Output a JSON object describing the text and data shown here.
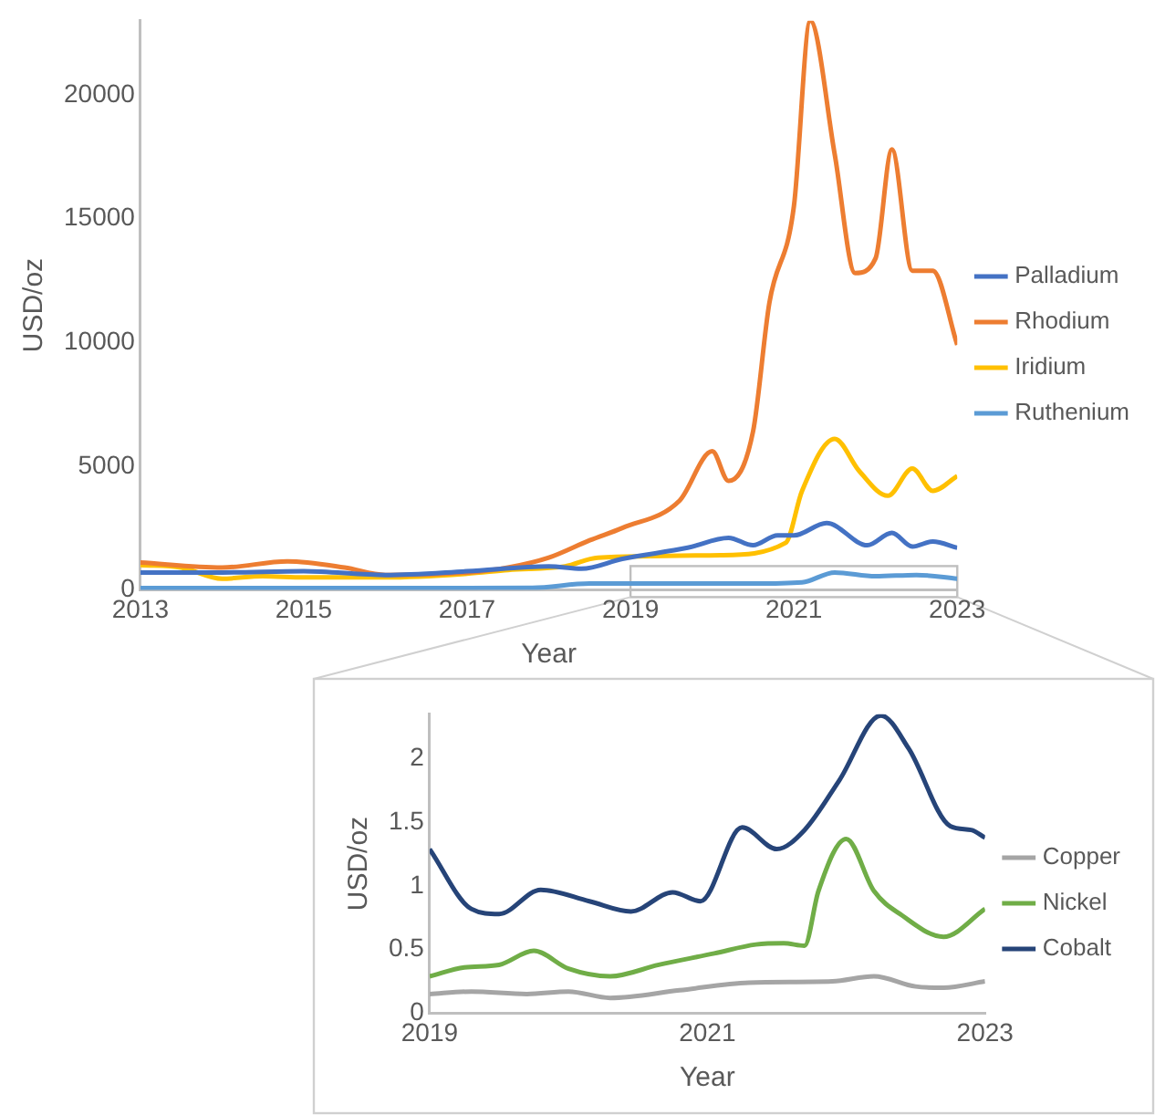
{
  "chart_data": [
    {
      "type": "line",
      "xlabel": "Year",
      "ylabel": "USD/oz",
      "xlim": [
        2013,
        2023
      ],
      "xticks": [
        2013,
        2015,
        2017,
        2019,
        2021,
        2023
      ],
      "ylim": [
        0,
        23000
      ],
      "yticks": [
        0,
        5000,
        10000,
        15000,
        20000
      ],
      "legend": "right",
      "series": [
        {
          "name": "Palladium",
          "color": "#4472c4",
          "x": [
            2013,
            2014,
            2015,
            2016,
            2017,
            2018,
            2018.4,
            2018.9,
            2019.7,
            2020.2,
            2020.5,
            2020.8,
            2021,
            2021.4,
            2021.9,
            2022.2,
            2022.45,
            2022.7,
            2023
          ],
          "values": [
            700,
            700,
            750,
            600,
            750,
            950,
            850,
            1250,
            1700,
            2100,
            1800,
            2200,
            2200,
            2700,
            1800,
            2300,
            1750,
            1950,
            1700
          ]
        },
        {
          "name": "Rhodium",
          "color": "#ed7d31",
          "x": [
            2013,
            2014,
            2014.8,
            2015.5,
            2016,
            2017,
            2017.5,
            2018,
            2018.5,
            2018.9,
            2019.6,
            2020,
            2020.2,
            2020.5,
            2020.7,
            2021,
            2021.2,
            2021.5,
            2021.75,
            2022,
            2022.2,
            2022.45,
            2022.7,
            2023
          ],
          "values": [
            1100,
            900,
            1150,
            900,
            600,
            700,
            900,
            1300,
            2000,
            2500,
            3600,
            5600,
            4400,
            6400,
            11600,
            15500,
            23000,
            17600,
            12800,
            13400,
            17800,
            12900,
            12900,
            9900
          ]
        },
        {
          "name": "Iridium",
          "color": "#ffc000",
          "x": [
            2013,
            2013.5,
            2014,
            2014.5,
            2015,
            2016,
            2017,
            2017.5,
            2018.2,
            2018.6,
            2020.1,
            2020.9,
            2021.1,
            2021.5,
            2021.8,
            2022.15,
            2022.45,
            2022.7,
            2023
          ],
          "values": [
            1000,
            900,
            450,
            550,
            500,
            500,
            650,
            800,
            950,
            1300,
            1400,
            1900,
            4000,
            6100,
            4800,
            3800,
            4900,
            4000,
            4600
          ]
        },
        {
          "name": "Ruthenium",
          "color": "#5b9bd5",
          "x": [
            2013,
            2015,
            2017,
            2017.8,
            2018.5,
            2019.5,
            2020.5,
            2021.1,
            2021.5,
            2022,
            2022.5,
            2023
          ],
          "values": [
            70,
            70,
            70,
            80,
            250,
            250,
            250,
            300,
            700,
            550,
            600,
            450
          ]
        }
      ]
    },
    {
      "type": "line",
      "xlabel": "Year",
      "ylabel": "USD/oz",
      "xlim": [
        2019,
        2023
      ],
      "xticks": [
        2019,
        2021,
        2023
      ],
      "ylim": [
        0,
        2.35
      ],
      "yticks": [
        0,
        0.5,
        1,
        1.5,
        2
      ],
      "legend": "right",
      "series": [
        {
          "name": "Copper",
          "color": "#a5a5a5",
          "x": [
            2019,
            2019.3,
            2019.7,
            2020,
            2020.3,
            2020.8,
            2021.3,
            2021.9,
            2022.2,
            2022.5,
            2022.7,
            2023
          ],
          "values": [
            0.15,
            0.17,
            0.15,
            0.17,
            0.12,
            0.18,
            0.24,
            0.25,
            0.29,
            0.21,
            0.2,
            0.25
          ]
        },
        {
          "name": "Nickel",
          "color": "#70ad47",
          "x": [
            2019,
            2019.25,
            2019.5,
            2019.75,
            2020,
            2020.3,
            2020.65,
            2021.05,
            2021.35,
            2021.55,
            2021.7,
            2021.8,
            2022,
            2022.2,
            2022.4,
            2022.7,
            2023
          ],
          "values": [
            0.29,
            0.36,
            0.38,
            0.49,
            0.35,
            0.29,
            0.38,
            0.47,
            0.54,
            0.55,
            0.53,
            0.96,
            1.37,
            0.96,
            0.77,
            0.6,
            0.82
          ]
        },
        {
          "name": "Cobalt",
          "color": "#264478",
          "x": [
            2019,
            2019.3,
            2019.5,
            2019.8,
            2020.15,
            2020.45,
            2020.75,
            2020.95,
            2021.25,
            2021.5,
            2021.7,
            2021.95,
            2022.25,
            2022.45,
            2022.75,
            2022.9,
            2023
          ],
          "values": [
            1.29,
            0.82,
            0.78,
            0.97,
            0.88,
            0.8,
            0.95,
            0.88,
            1.46,
            1.29,
            1.44,
            1.83,
            2.34,
            2.08,
            1.47,
            1.44,
            1.38
          ]
        }
      ]
    }
  ]
}
